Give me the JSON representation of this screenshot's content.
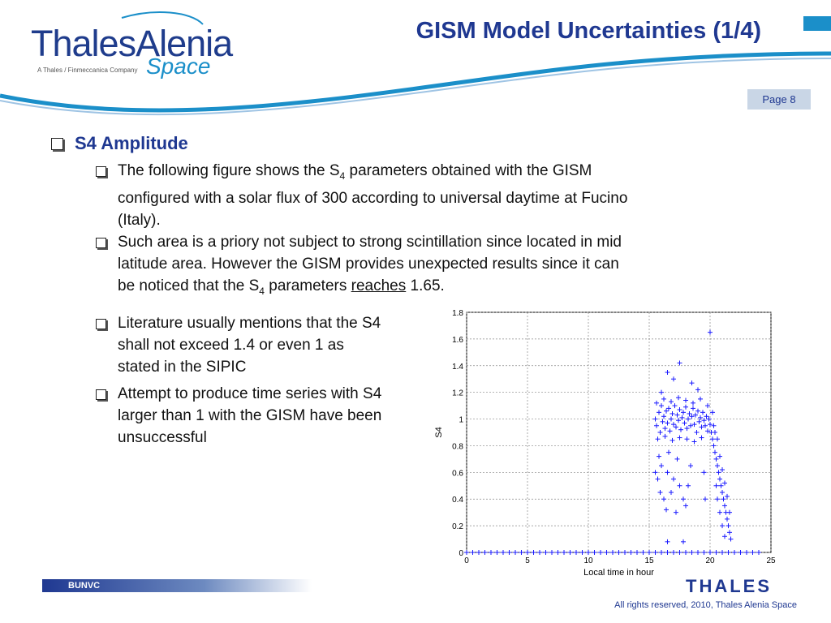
{
  "logo": {
    "name": "ThalesAlenia",
    "tagline": "A Thales / Finmeccanica Company",
    "sub": "Space"
  },
  "title": "GISM Model Uncertainties (1/4)",
  "page": "Page 8",
  "heading": "S4 Amplitude",
  "bullets": [
    {
      "lines": [
        {
          "pre": "The following figure shows the S",
          "sub": "4",
          "post": " parameters obtained with the GISM"
        },
        {
          "text": "configured with a solar flux of 300 according to universal daytime at Fucino"
        },
        {
          "text": "(Italy)."
        }
      ]
    },
    {
      "lines": [
        {
          "text": "Such area is a priory not subject to strong scintillation since located in mid"
        },
        {
          "text": "latitude area.  However the GISM provides unexpected results since it can"
        },
        {
          "pre": "be noticed that the S",
          "sub": "4",
          "mid": " parameters ",
          "link": "reaches",
          "post": " 1.65."
        }
      ]
    },
    {
      "lines": [
        {
          "text": "Literature usually mentions that the S4"
        },
        {
          "text": "shall not exceed 1.4 or even 1 as"
        },
        {
          "text": "stated in the SIPIC"
        }
      ]
    },
    {
      "lines": [
        {
          "text": "Attempt to produce time series with S4"
        },
        {
          "text": "larger than 1 with the GISM have been"
        },
        {
          "text": "unsuccessful"
        }
      ]
    }
  ],
  "footer": {
    "code": "BUNVC",
    "brand": "THALES",
    "copyright": "All rights reserved, 2010, Thales Alenia Space"
  },
  "colors": {
    "primary": "#1f3891",
    "accent": "#1b8fc9",
    "marker": "#1a1aff"
  },
  "chart_data": {
    "type": "scatter",
    "xlabel": "Local time in hour",
    "ylabel": "S4",
    "xlim": [
      0,
      25
    ],
    "ylim": [
      0,
      1.8
    ],
    "xticks": [
      0,
      5,
      10,
      15,
      20,
      25
    ],
    "yticks": [
      0,
      0.2,
      0.4,
      0.6,
      0.8,
      1,
      1.2,
      1.4,
      1.6,
      1.8
    ],
    "grid": true,
    "marker": "+",
    "series": [
      {
        "points": [
          [
            0.0,
            0
          ],
          [
            0.5,
            0
          ],
          [
            1.0,
            0
          ],
          [
            1.5,
            0
          ],
          [
            2.0,
            0
          ],
          [
            2.5,
            0
          ],
          [
            3.0,
            0
          ],
          [
            3.5,
            0
          ],
          [
            4.0,
            0
          ],
          [
            4.5,
            0
          ],
          [
            5.0,
            0
          ],
          [
            5.5,
            0
          ],
          [
            6.0,
            0
          ],
          [
            6.5,
            0
          ],
          [
            7.0,
            0
          ],
          [
            7.5,
            0
          ],
          [
            8.0,
            0
          ],
          [
            8.5,
            0
          ],
          [
            9.0,
            0
          ],
          [
            9.5,
            0
          ],
          [
            10.0,
            0
          ],
          [
            10.5,
            0
          ],
          [
            11.0,
            0
          ],
          [
            11.5,
            0
          ],
          [
            12.0,
            0
          ],
          [
            12.5,
            0
          ],
          [
            13.0,
            0
          ],
          [
            13.5,
            0
          ],
          [
            14.0,
            0
          ],
          [
            14.5,
            0
          ],
          [
            15.0,
            0
          ],
          [
            15.5,
            0
          ],
          [
            16.0,
            0
          ],
          [
            16.5,
            0
          ],
          [
            17.0,
            0
          ],
          [
            17.5,
            0
          ],
          [
            18.0,
            0
          ],
          [
            18.5,
            0
          ],
          [
            19.0,
            0
          ],
          [
            19.5,
            0
          ],
          [
            20.0,
            0
          ],
          [
            20.5,
            0
          ],
          [
            21.0,
            0
          ],
          [
            21.5,
            0
          ],
          [
            22.0,
            0
          ],
          [
            22.5,
            0
          ],
          [
            23.0,
            0
          ],
          [
            23.5,
            0
          ],
          [
            24.0,
            0
          ],
          [
            20.0,
            1.65
          ],
          [
            17.5,
            1.42
          ],
          [
            16.5,
            1.35
          ],
          [
            18.5,
            1.27
          ],
          [
            19.0,
            1.22
          ],
          [
            17.0,
            1.3
          ],
          [
            16.0,
            1.2
          ],
          [
            15.5,
            1.0
          ],
          [
            15.6,
            0.95
          ],
          [
            15.8,
            1.05
          ],
          [
            15.9,
            0.9
          ],
          [
            16.0,
            1.1
          ],
          [
            16.1,
            0.98
          ],
          [
            16.2,
            1.02
          ],
          [
            16.3,
            0.93
          ],
          [
            16.4,
            1.06
          ],
          [
            16.5,
            0.97
          ],
          [
            16.6,
            1.08
          ],
          [
            16.7,
            0.91
          ],
          [
            16.8,
            1.0
          ],
          [
            16.9,
            1.04
          ],
          [
            17.0,
            0.96
          ],
          [
            17.1,
            1.1
          ],
          [
            17.2,
            0.94
          ],
          [
            17.3,
            1.03
          ],
          [
            17.4,
            0.99
          ],
          [
            17.5,
            1.07
          ],
          [
            17.6,
            0.92
          ],
          [
            17.7,
            1.01
          ],
          [
            17.8,
            1.05
          ],
          [
            17.9,
            0.97
          ],
          [
            18.0,
            1.09
          ],
          [
            18.1,
            0.93
          ],
          [
            18.2,
            1.0
          ],
          [
            18.3,
            1.04
          ],
          [
            18.4,
            0.95
          ],
          [
            18.5,
            1.02
          ],
          [
            18.6,
            1.08
          ],
          [
            18.7,
            0.96
          ],
          [
            18.8,
            1.03
          ],
          [
            18.9,
            0.9
          ],
          [
            19.0,
            1.06
          ],
          [
            19.1,
            0.98
          ],
          [
            19.2,
            1.01
          ],
          [
            19.3,
            0.94
          ],
          [
            19.4,
            1.05
          ],
          [
            19.5,
            0.99
          ],
          [
            19.6,
            0.95
          ],
          [
            19.7,
            1.02
          ],
          [
            19.8,
            0.91
          ],
          [
            19.9,
            1.0
          ],
          [
            20.0,
            0.96
          ],
          [
            20.1,
            0.9
          ],
          [
            20.2,
            0.85
          ],
          [
            20.3,
            0.8
          ],
          [
            15.6,
            1.12
          ],
          [
            16.2,
            1.15
          ],
          [
            16.8,
            1.13
          ],
          [
            17.4,
            1.16
          ],
          [
            18.0,
            1.14
          ],
          [
            18.6,
            1.12
          ],
          [
            19.2,
            1.15
          ],
          [
            19.8,
            1.1
          ],
          [
            20.2,
            1.05
          ],
          [
            15.7,
            0.85
          ],
          [
            16.3,
            0.87
          ],
          [
            16.9,
            0.84
          ],
          [
            17.5,
            0.86
          ],
          [
            18.1,
            0.85
          ],
          [
            18.7,
            0.83
          ],
          [
            19.3,
            0.86
          ],
          [
            20.4,
            0.75
          ],
          [
            20.5,
            0.7
          ],
          [
            20.6,
            0.65
          ],
          [
            20.7,
            0.6
          ],
          [
            20.8,
            0.55
          ],
          [
            20.9,
            0.5
          ],
          [
            21.0,
            0.45
          ],
          [
            21.1,
            0.4
          ],
          [
            21.2,
            0.35
          ],
          [
            21.3,
            0.3
          ],
          [
            21.4,
            0.25
          ],
          [
            21.5,
            0.2
          ],
          [
            21.6,
            0.15
          ],
          [
            21.7,
            0.1
          ],
          [
            20.5,
            0.5
          ],
          [
            20.6,
            0.4
          ],
          [
            20.8,
            0.3
          ],
          [
            21.0,
            0.2
          ],
          [
            21.2,
            0.12
          ],
          [
            20.4,
            0.9
          ],
          [
            20.6,
            0.85
          ],
          [
            20.8,
            0.72
          ],
          [
            21.0,
            0.62
          ],
          [
            21.2,
            0.52
          ],
          [
            21.4,
            0.42
          ],
          [
            21.6,
            0.3
          ],
          [
            20.3,
            0.95
          ],
          [
            15.5,
            0.6
          ],
          [
            15.7,
            0.55
          ],
          [
            15.9,
            0.45
          ],
          [
            16.0,
            0.65
          ],
          [
            16.2,
            0.4
          ],
          [
            16.4,
            0.32
          ],
          [
            16.5,
            0.6
          ],
          [
            16.8,
            0.45
          ],
          [
            17.0,
            0.55
          ],
          [
            17.2,
            0.3
          ],
          [
            17.5,
            0.5
          ],
          [
            17.8,
            0.4
          ],
          [
            18.0,
            0.35
          ],
          [
            18.2,
            0.5
          ],
          [
            16.6,
            0.75
          ],
          [
            17.3,
            0.7
          ],
          [
            18.4,
            0.65
          ],
          [
            15.8,
            0.72
          ],
          [
            16.5,
            0.08
          ],
          [
            17.8,
            0.08
          ],
          [
            19.5,
            0.6
          ],
          [
            19.6,
            0.4
          ]
        ]
      }
    ]
  }
}
